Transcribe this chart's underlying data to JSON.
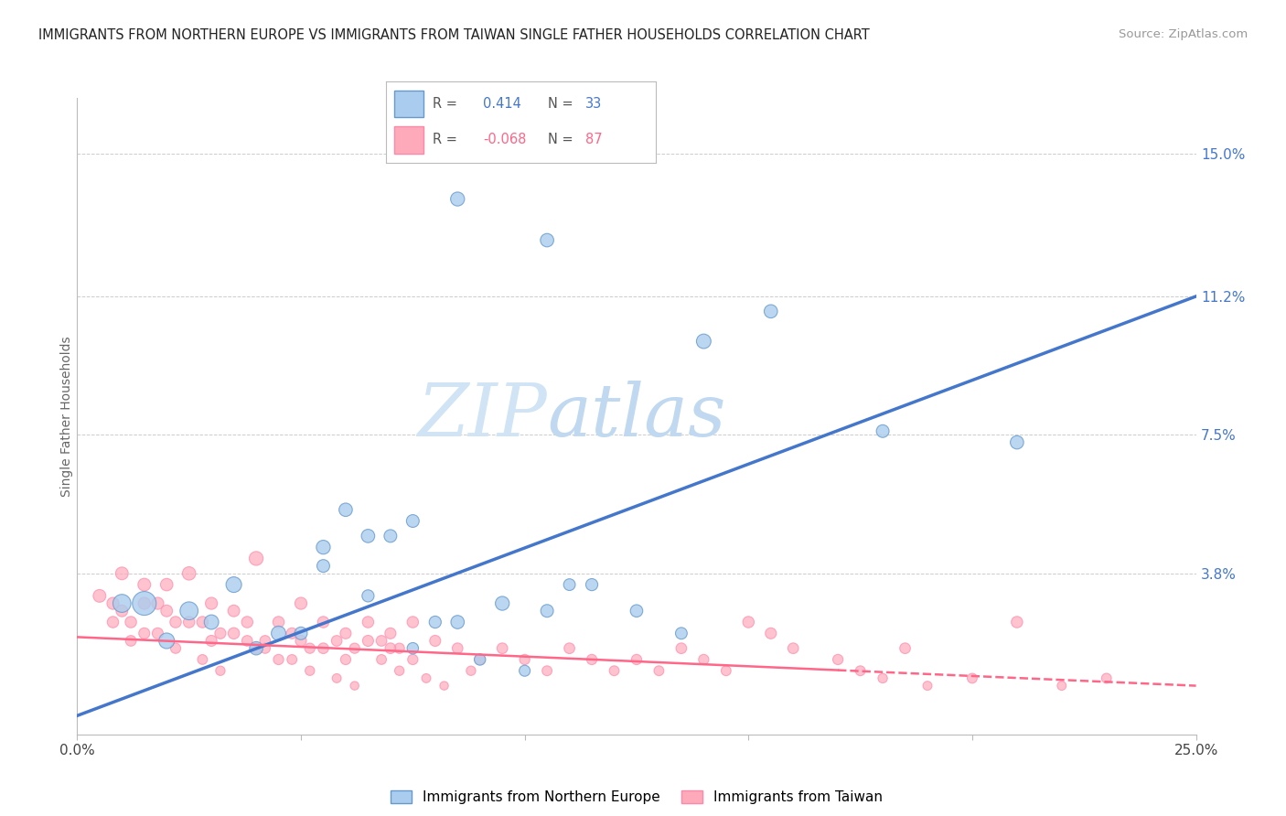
{
  "title": "IMMIGRANTS FROM NORTHERN EUROPE VS IMMIGRANTS FROM TAIWAN SINGLE FATHER HOUSEHOLDS CORRELATION CHART",
  "source": "Source: ZipAtlas.com",
  "ylabel": "Single Father Households",
  "xlim": [
    0.0,
    0.25
  ],
  "ylim": [
    -0.005,
    0.165
  ],
  "x_ticks": [
    0.0,
    0.05,
    0.1,
    0.15,
    0.2,
    0.25
  ],
  "x_tick_labels": [
    "0.0%",
    "",
    "",
    "",
    "",
    "25.0%"
  ],
  "y_tick_labels_right": [
    "15.0%",
    "11.2%",
    "7.5%",
    "3.8%"
  ],
  "y_tick_positions_right": [
    0.15,
    0.112,
    0.075,
    0.038
  ],
  "R_blue": 0.414,
  "N_blue": 33,
  "R_pink": -0.068,
  "N_pink": 87,
  "blue_color": "#AACCEE",
  "pink_color": "#FFAABB",
  "blue_edge_color": "#6699CC",
  "pink_edge_color": "#FF88AA",
  "blue_line_color": "#4477CC",
  "pink_line_color": "#FF6688",
  "grid_color": "#CCCCCC",
  "background_color": "#FFFFFF",
  "blue_scatter_x": [
    0.085,
    0.105,
    0.14,
    0.155,
    0.18,
    0.21,
    0.015,
    0.025,
    0.035,
    0.045,
    0.055,
    0.065,
    0.075,
    0.085,
    0.095,
    0.105,
    0.115,
    0.125,
    0.135,
    0.01,
    0.02,
    0.03,
    0.04,
    0.05,
    0.06,
    0.07,
    0.08,
    0.09,
    0.1,
    0.11,
    0.055,
    0.065,
    0.075
  ],
  "blue_scatter_y": [
    0.138,
    0.127,
    0.1,
    0.108,
    0.076,
    0.073,
    0.03,
    0.028,
    0.035,
    0.022,
    0.045,
    0.048,
    0.052,
    0.025,
    0.03,
    0.028,
    0.035,
    0.028,
    0.022,
    0.03,
    0.02,
    0.025,
    0.018,
    0.022,
    0.055,
    0.048,
    0.025,
    0.015,
    0.012,
    0.035,
    0.04,
    0.032,
    0.018
  ],
  "blue_scatter_size": [
    120,
    110,
    130,
    110,
    100,
    110,
    350,
    200,
    150,
    130,
    120,
    110,
    100,
    110,
    120,
    100,
    90,
    95,
    85,
    200,
    150,
    130,
    110,
    100,
    110,
    100,
    90,
    80,
    75,
    85,
    100,
    90,
    80
  ],
  "pink_scatter_x": [
    0.005,
    0.008,
    0.01,
    0.012,
    0.015,
    0.015,
    0.018,
    0.02,
    0.022,
    0.025,
    0.028,
    0.03,
    0.032,
    0.035,
    0.038,
    0.04,
    0.042,
    0.045,
    0.048,
    0.05,
    0.052,
    0.055,
    0.058,
    0.06,
    0.062,
    0.065,
    0.068,
    0.07,
    0.072,
    0.075,
    0.01,
    0.015,
    0.02,
    0.025,
    0.03,
    0.035,
    0.04,
    0.045,
    0.05,
    0.055,
    0.06,
    0.065,
    0.07,
    0.075,
    0.08,
    0.085,
    0.09,
    0.095,
    0.1,
    0.105,
    0.11,
    0.115,
    0.12,
    0.125,
    0.13,
    0.135,
    0.14,
    0.145,
    0.15,
    0.155,
    0.16,
    0.17,
    0.175,
    0.18,
    0.185,
    0.19,
    0.2,
    0.21,
    0.22,
    0.23,
    0.008,
    0.012,
    0.018,
    0.022,
    0.028,
    0.032,
    0.038,
    0.042,
    0.048,
    0.052,
    0.058,
    0.062,
    0.068,
    0.072,
    0.078,
    0.082,
    0.088
  ],
  "pink_scatter_y": [
    0.032,
    0.03,
    0.028,
    0.025,
    0.035,
    0.022,
    0.03,
    0.028,
    0.025,
    0.038,
    0.025,
    0.03,
    0.022,
    0.028,
    0.025,
    0.042,
    0.02,
    0.025,
    0.022,
    0.03,
    0.018,
    0.025,
    0.02,
    0.022,
    0.018,
    0.025,
    0.02,
    0.022,
    0.018,
    0.025,
    0.038,
    0.03,
    0.035,
    0.025,
    0.02,
    0.022,
    0.018,
    0.015,
    0.02,
    0.018,
    0.015,
    0.02,
    0.018,
    0.015,
    0.02,
    0.018,
    0.015,
    0.018,
    0.015,
    0.012,
    0.018,
    0.015,
    0.012,
    0.015,
    0.012,
    0.018,
    0.015,
    0.012,
    0.025,
    0.022,
    0.018,
    0.015,
    0.012,
    0.01,
    0.018,
    0.008,
    0.01,
    0.025,
    0.008,
    0.01,
    0.025,
    0.02,
    0.022,
    0.018,
    0.015,
    0.012,
    0.02,
    0.018,
    0.015,
    0.012,
    0.01,
    0.008,
    0.015,
    0.012,
    0.01,
    0.008,
    0.012
  ],
  "pink_scatter_size": [
    100,
    90,
    85,
    80,
    100,
    75,
    90,
    85,
    80,
    110,
    80,
    90,
    75,
    85,
    80,
    120,
    70,
    80,
    75,
    90,
    65,
    80,
    70,
    75,
    65,
    80,
    70,
    75,
    65,
    80,
    100,
    90,
    95,
    80,
    75,
    80,
    70,
    65,
    75,
    70,
    65,
    75,
    70,
    65,
    75,
    70,
    65,
    70,
    65,
    60,
    70,
    65,
    60,
    65,
    60,
    70,
    65,
    60,
    80,
    75,
    70,
    65,
    60,
    55,
    70,
    50,
    60,
    80,
    50,
    60,
    80,
    70,
    75,
    65,
    60,
    55,
    70,
    65,
    60,
    55,
    50,
    45,
    60,
    55,
    50,
    45,
    55
  ],
  "blue_trendline_x": [
    0.0,
    0.25
  ],
  "blue_trendline_y": [
    0.0,
    0.112
  ],
  "pink_trendline_x": [
    0.0,
    0.25
  ],
  "pink_trendline_y": [
    0.021,
    0.008
  ]
}
